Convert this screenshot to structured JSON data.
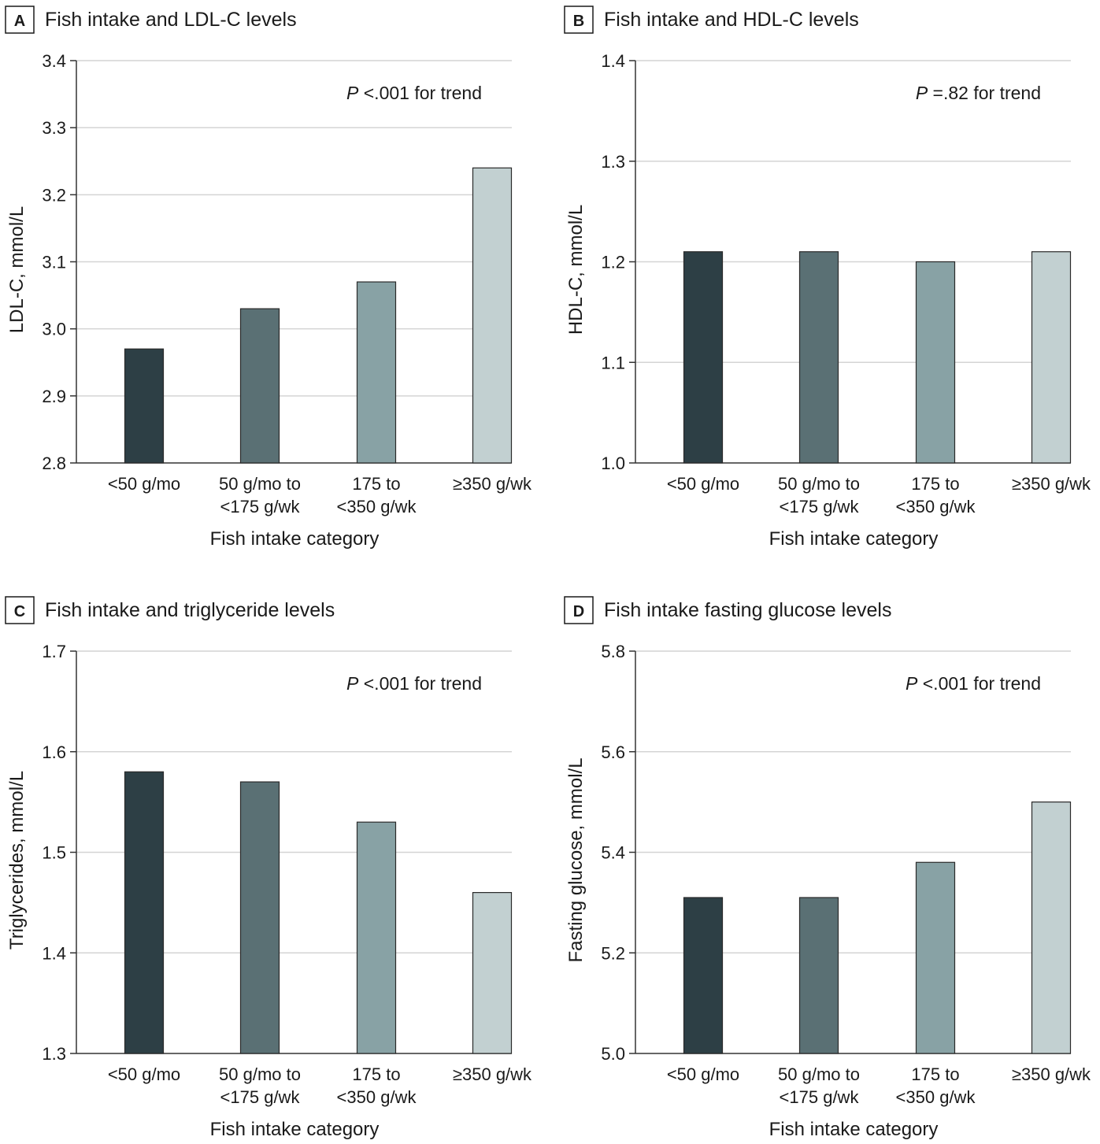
{
  "chart_data": [
    {
      "type": "bar",
      "panel_letter": "A",
      "title": "Fish intake and LDL-C levels",
      "xlabel": "Fish intake category",
      "ylabel": "LDL-C, mmol/L",
      "ylim": [
        2.8,
        3.4
      ],
      "yticks": [
        "2.8",
        "2.9",
        "3.0",
        "3.1",
        "3.2",
        "3.3",
        "3.4"
      ],
      "categories": [
        [
          "<50 g/mo"
        ],
        [
          "50 g/mo to",
          "<175 g/wk"
        ],
        [
          "175 to",
          "<350 g/wk"
        ],
        [
          "≥350 g/wk"
        ]
      ],
      "values": [
        2.97,
        3.03,
        3.07,
        3.24
      ],
      "p_label": "P",
      "p_value": "<.001 for trend",
      "grid": true
    },
    {
      "type": "bar",
      "panel_letter": "B",
      "title": "Fish intake and HDL-C levels",
      "xlabel": "Fish intake category",
      "ylabel": "HDL-C, mmol/L",
      "ylim": [
        1.0,
        1.4
      ],
      "yticks": [
        "1.0",
        "1.1",
        "1.2",
        "1.3",
        "1.4"
      ],
      "categories": [
        [
          "<50 g/mo"
        ],
        [
          "50 g/mo to",
          "<175 g/wk"
        ],
        [
          "175 to",
          "<350 g/wk"
        ],
        [
          "≥350 g/wk"
        ]
      ],
      "values": [
        1.21,
        1.21,
        1.2,
        1.21
      ],
      "p_label": "P",
      "p_value": "=.82 for trend",
      "grid": true
    },
    {
      "type": "bar",
      "panel_letter": "C",
      "title": "Fish intake and triglyceride levels",
      "xlabel": "Fish intake category",
      "ylabel": "Triglycerides, mmol/L",
      "ylim": [
        1.3,
        1.7
      ],
      "yticks": [
        "1.3",
        "1.4",
        "1.5",
        "1.6",
        "1.7"
      ],
      "categories": [
        [
          "<50 g/mo"
        ],
        [
          "50 g/mo to",
          "<175 g/wk"
        ],
        [
          "175 to",
          "<350 g/wk"
        ],
        [
          "≥350 g/wk"
        ]
      ],
      "values": [
        1.58,
        1.57,
        1.53,
        1.46
      ],
      "p_label": "P",
      "p_value": "<.001 for trend",
      "grid": true
    },
    {
      "type": "bar",
      "panel_letter": "D",
      "title": "Fish intake fasting glucose levels",
      "xlabel": "Fish intake category",
      "ylabel": "Fasting glucose, mmol/L",
      "ylim": [
        5.0,
        5.8
      ],
      "yticks": [
        "5.0",
        "5.2",
        "5.4",
        "5.6",
        "5.8"
      ],
      "categories": [
        [
          "<50 g/mo"
        ],
        [
          "50 g/mo to",
          "<175 g/wk"
        ],
        [
          "175 to",
          "<350 g/wk"
        ],
        [
          "≥350 g/wk"
        ]
      ],
      "values": [
        5.31,
        5.31,
        5.38,
        5.5
      ],
      "p_label": "P",
      "p_value": "<.001 for trend",
      "grid": true
    }
  ],
  "colors": {
    "bars": [
      "#2d3f45",
      "#5a7074",
      "#88a2a5",
      "#c2d0d1"
    ],
    "grid": "#d4d4d4",
    "axis": "#333333"
  }
}
